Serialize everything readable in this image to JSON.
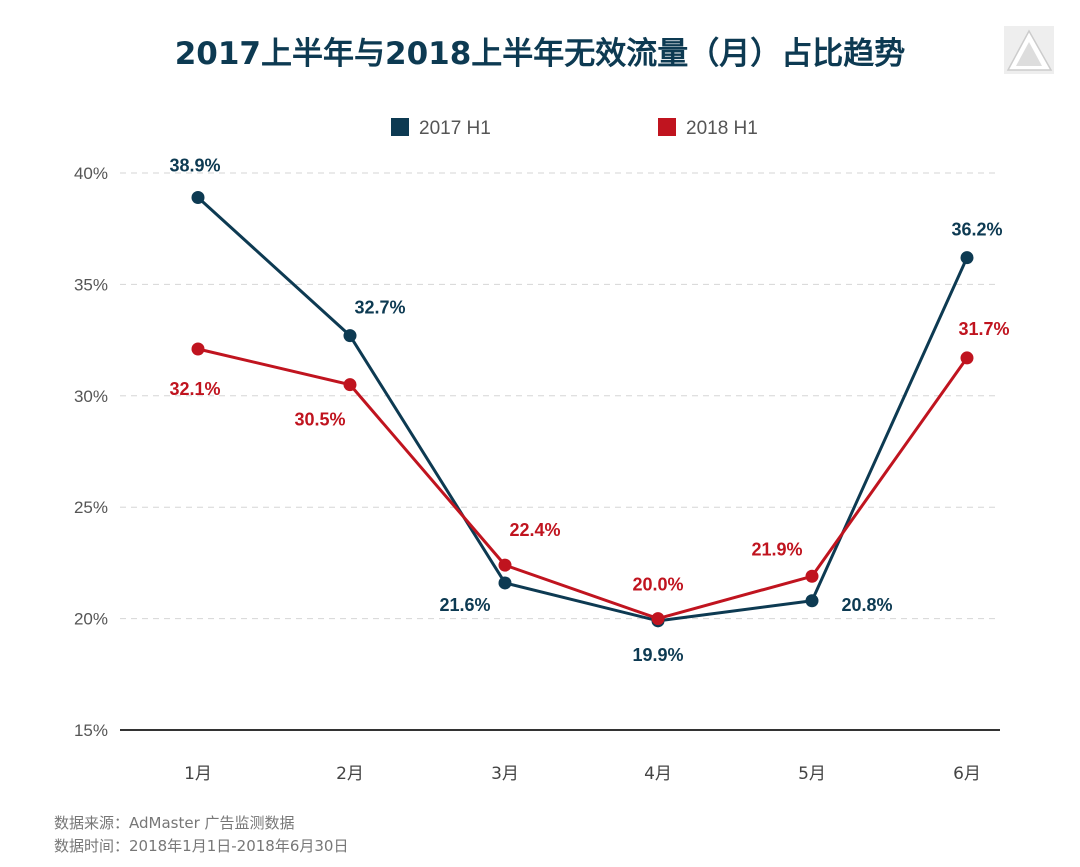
{
  "chart_data": {
    "type": "line",
    "title": "2017上半年与2018上半年无效流量（月）占比趋势",
    "categories": [
      "1月",
      "2月",
      "3月",
      "4月",
      "5月",
      "6月"
    ],
    "ylim": [
      15,
      40
    ],
    "yticks": [
      "15%",
      "20%",
      "25%",
      "30%",
      "35%",
      "40%"
    ],
    "grid": true,
    "legend_position": "top-center",
    "series": [
      {
        "name": "2017 H1",
        "color": "#0d3a52",
        "values": [
          38.9,
          32.7,
          21.6,
          19.9,
          20.8,
          36.2
        ],
        "labels": [
          "38.9%",
          "32.7%",
          "21.6%",
          "19.9%",
          "20.8%",
          "36.2%"
        ]
      },
      {
        "name": "2018 H1",
        "color": "#c0141f",
        "values": [
          32.1,
          30.5,
          22.4,
          20.0,
          21.9,
          31.7
        ],
        "labels": [
          "32.1%",
          "30.5%",
          "22.4%",
          "20.0%",
          "21.9%",
          "31.7%"
        ]
      }
    ]
  },
  "footer": {
    "source": "数据来源：AdMaster 广告监测数据",
    "period": "数据时间：2018年1月1日-2018年6月30日"
  },
  "logo": {
    "icon": "triangle-logo-icon"
  }
}
